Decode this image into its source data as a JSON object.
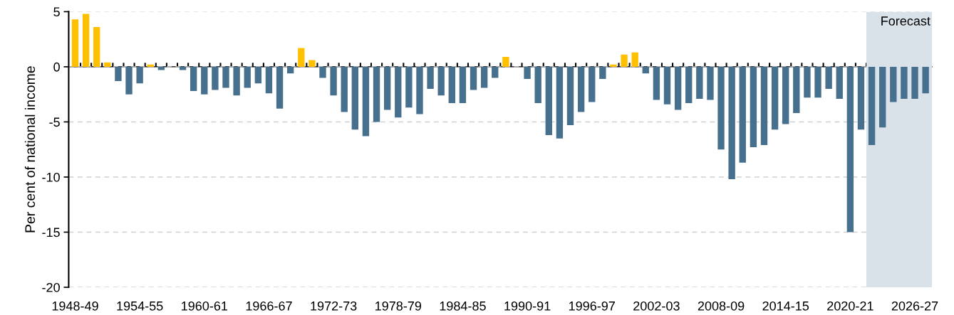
{
  "chart_data": {
    "type": "bar",
    "ylabel": "Per cent of national income",
    "categories": [
      "1948-49",
      null,
      null,
      null,
      null,
      null,
      "1954-55",
      null,
      null,
      null,
      null,
      null,
      "1960-61",
      null,
      null,
      null,
      null,
      null,
      "1966-67",
      null,
      null,
      null,
      null,
      null,
      "1972-73",
      null,
      null,
      null,
      null,
      null,
      "1978-79",
      null,
      null,
      null,
      null,
      null,
      "1984-85",
      null,
      null,
      null,
      null,
      null,
      "1990-91",
      null,
      null,
      null,
      null,
      null,
      "1996-97",
      null,
      null,
      null,
      null,
      null,
      "2002-03",
      null,
      null,
      null,
      null,
      null,
      "2008-09",
      null,
      null,
      null,
      null,
      null,
      "2014-15",
      null,
      null,
      null,
      null,
      null,
      "2020-21",
      null,
      null,
      null,
      null,
      null,
      "2026-27",
      null
    ],
    "values": [
      4.3,
      4.8,
      3.6,
      0.4,
      -1.3,
      -2.5,
      -1.5,
      0.2,
      -0.3,
      0,
      -0.3,
      -2.2,
      -2.5,
      -2.1,
      -1.9,
      -2.6,
      -1.9,
      -1.5,
      -2.4,
      -3.8,
      -0.6,
      1.7,
      0.6,
      -1.0,
      -2.6,
      -4.1,
      -5.7,
      -6.3,
      -5.0,
      -3.9,
      -4.6,
      -3.7,
      -4.3,
      -2.0,
      -2.6,
      -3.3,
      -3.3,
      -2.1,
      -1.9,
      -1.0,
      0.9,
      0,
      -1.1,
      -3.3,
      -6.2,
      -6.5,
      -5.3,
      -4.1,
      -3.2,
      -1.1,
      0.2,
      1.1,
      1.3,
      -0.6,
      -3.0,
      -3.4,
      -3.9,
      -3.3,
      -2.9,
      -3.0,
      -7.5,
      -10.2,
      -8.7,
      -7.3,
      -7.1,
      -5.7,
      -5.2,
      -4.2,
      -2.8,
      -2.8,
      -2.0,
      -2.9,
      -15.0,
      -5.7,
      -7.1,
      -5.5,
      -3.2,
      -2.9,
      -2.9,
      -2.4
    ],
    "colors": [
      "#ffc000",
      "#ffc000",
      "#ffc000",
      "#ffc000",
      "#47708f",
      "#47708f",
      "#47708f",
      "#ffc000",
      "#47708f",
      "#47708f",
      "#47708f",
      "#47708f",
      "#47708f",
      "#47708f",
      "#47708f",
      "#47708f",
      "#47708f",
      "#47708f",
      "#47708f",
      "#47708f",
      "#47708f",
      "#ffc000",
      "#ffc000",
      "#47708f",
      "#47708f",
      "#47708f",
      "#47708f",
      "#47708f",
      "#47708f",
      "#47708f",
      "#47708f",
      "#47708f",
      "#47708f",
      "#47708f",
      "#47708f",
      "#47708f",
      "#47708f",
      "#47708f",
      "#47708f",
      "#47708f",
      "#ffc000",
      "#47708f",
      "#47708f",
      "#47708f",
      "#47708f",
      "#47708f",
      "#47708f",
      "#47708f",
      "#47708f",
      "#47708f",
      "#ffc000",
      "#ffc000",
      "#ffc000",
      "#47708f",
      "#47708f",
      "#47708f",
      "#47708f",
      "#47708f",
      "#47708f",
      "#47708f",
      "#47708f",
      "#47708f",
      "#47708f",
      "#47708f",
      "#47708f",
      "#47708f",
      "#47708f",
      "#47708f",
      "#47708f",
      "#47708f",
      "#47708f",
      "#47708f",
      "#47708f",
      "#47708f",
      "#47708f",
      "#47708f",
      "#47708f",
      "#47708f",
      "#47708f",
      "#47708f"
    ],
    "ylim": [
      -20,
      5
    ],
    "yticks": [
      5,
      0,
      -5,
      -10,
      -15,
      -20
    ],
    "grid": "y",
    "annotations": [
      "Forecast"
    ]
  }
}
